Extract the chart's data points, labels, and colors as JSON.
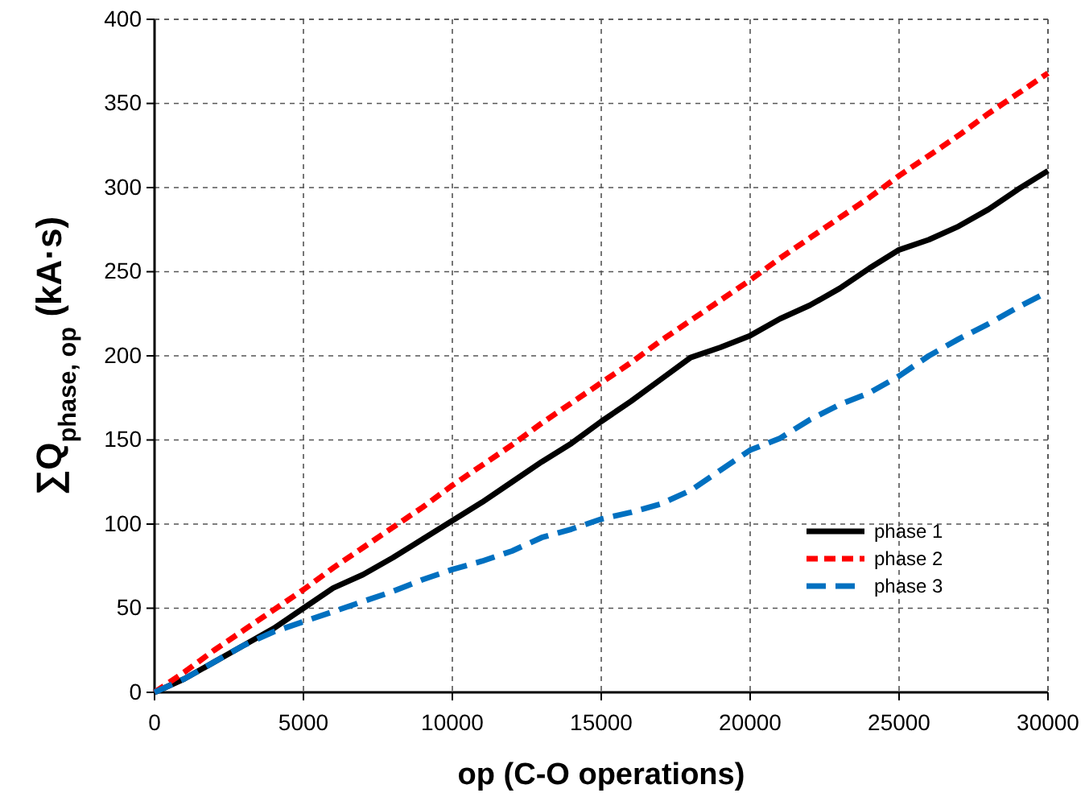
{
  "chart_data": {
    "type": "line",
    "xlabel": "op (C-O operations)",
    "ylabel": "∑Q$_{phase, op}$ (kA·s)",
    "x": [
      0,
      1000,
      2000,
      3000,
      4000,
      5000,
      6000,
      7000,
      8000,
      9000,
      10000,
      11000,
      12000,
      13000,
      14000,
      15000,
      16000,
      17000,
      18000,
      19000,
      20000,
      21000,
      22000,
      23000,
      24000,
      25000,
      26000,
      27000,
      28000,
      29000,
      30000
    ],
    "series": [
      {
        "name": "phase 1",
        "color": "#000000",
        "line_style": "solid",
        "values": [
          0,
          8,
          18,
          28,
          38,
          50,
          62,
          70,
          80,
          91,
          102,
          113,
          125,
          137,
          148,
          161,
          173,
          186,
          199,
          205,
          212,
          222,
          230,
          240,
          252,
          263,
          269,
          277,
          287,
          299,
          310
        ]
      },
      {
        "name": "phase 2",
        "color": "#ff0000",
        "line_style": "dotted",
        "values": [
          0,
          12,
          25,
          37,
          49,
          61,
          74,
          86,
          98,
          110,
          123,
          135,
          147,
          160,
          172,
          184,
          196,
          209,
          221,
          233,
          245,
          258,
          270,
          282,
          294,
          307,
          319,
          331,
          344,
          356,
          368
        ]
      },
      {
        "name": "phase 3",
        "color": "#0070c0",
        "line_style": "dashed",
        "values": [
          0,
          8,
          18,
          28,
          36,
          42,
          48,
          54,
          60,
          67,
          73,
          78,
          84,
          92,
          97,
          103,
          107,
          112,
          120,
          132,
          144,
          151,
          162,
          171,
          178,
          188,
          200,
          210,
          219,
          229,
          238
        ]
      }
    ],
    "xlim": [
      0,
      30000
    ],
    "xticks": [
      0,
      5000,
      10000,
      15000,
      20000,
      25000,
      30000
    ],
    "ylim": [
      0,
      400
    ],
    "yticks": [
      0,
      50,
      100,
      150,
      200,
      250,
      300,
      350,
      400
    ],
    "grid": true,
    "legend": "bottom right"
  }
}
